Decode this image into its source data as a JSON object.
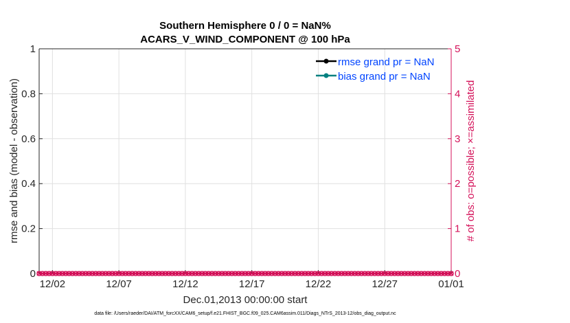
{
  "chart_data": {
    "type": "line",
    "title": [
      "Southern Hemisphere 0 / 0 = NaN%",
      "ACARS_V_WIND_COMPONENT @ 100 hPa"
    ],
    "xlabel": "Dec.01,2013 00:00:00 start",
    "ylabel": "rmse and bias (model - observation)",
    "ylabel_right": "# of obs: o=possible; ×=assimilated",
    "xlim": [
      "2013-12-01",
      "2014-01-01"
    ],
    "x_ticks": [
      "12/02",
      "12/07",
      "12/12",
      "12/17",
      "12/22",
      "12/27",
      "01/01"
    ],
    "x_tick_dates": [
      "2013-12-02",
      "2013-12-07",
      "2013-12-12",
      "2013-12-17",
      "2013-12-22",
      "2013-12-27",
      "2014-01-01"
    ],
    "ylim": [
      0,
      1
    ],
    "y_ticks": [
      "0",
      "0.2",
      "0.4",
      "0.6",
      "0.8",
      "1"
    ],
    "ylim_right": [
      0,
      5
    ],
    "y_ticks_right": [
      "0",
      "1",
      "2",
      "3",
      "4",
      "5"
    ],
    "grid": true,
    "legend_placement": "top-right",
    "series": [
      {
        "name": "rmse grand pr = NaN",
        "color": "#000000",
        "values": []
      },
      {
        "name": "bias grand pr = NaN",
        "color": "#008080",
        "values": []
      },
      {
        "name": "obs possible / assimilated",
        "color": "#D41159",
        "axis": "right",
        "interval_hours": 6,
        "values": "all 0"
      }
    ],
    "colors": {
      "right_axis": "#D41159",
      "legend_text": "#0044ff",
      "grid": "#e0e0e0"
    }
  },
  "footer": "data file: /Users/raeder/DAI/ATM_forcXX/CAM6_setup/f.e21.FHIST_BGC.f09_025.CAM6assim.011/Diags_NTrS_2013-12/obs_diag_output.nc"
}
